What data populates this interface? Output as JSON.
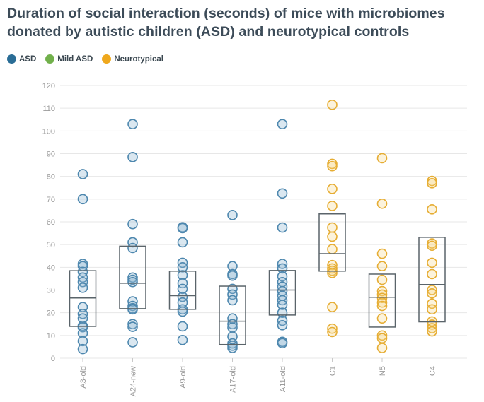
{
  "title": "Duration of social interaction (seconds) of mice with microbiomes\ndonated by autistic children (ASD) and neurotypical controls",
  "legend": [
    {
      "label": "ASD",
      "color": "#2a6d96"
    },
    {
      "label": "Mild ASD",
      "color": "#71b04b"
    },
    {
      "label": "Neurotypical",
      "color": "#efa81d"
    }
  ],
  "chart_data": {
    "type": "scatter",
    "overlay": "box",
    "title": "Duration of social interaction (seconds) of mice with microbiomes donated by autistic children (ASD) and neurotypical controls",
    "xlabel": "",
    "ylabel": "",
    "ylim": [
      0,
      120
    ],
    "ytick_step": 10,
    "grid": true,
    "legend_position": "top-left",
    "legend_entries": [
      "ASD",
      "Mild ASD",
      "Neurotypical"
    ],
    "categories": [
      "A3-old",
      "A24-new",
      "A9-old",
      "A17-old",
      "A11-old",
      "C1",
      "N5",
      "C4"
    ],
    "series_styles": {
      "ASD": {
        "stroke": "#4d87ae",
        "fill": "rgba(141,179,207,0.32)"
      },
      "Mild ASD": {
        "stroke": "#71b04b",
        "fill": "rgba(160,200,120,0.32)"
      },
      "Neurotypical": {
        "stroke": "#e6ad33",
        "fill": "rgba(244,211,130,0.28)"
      }
    },
    "box_color": "#5a646a",
    "grid_color": "#e7e7e7",
    "tick_color": "#c9c9c9",
    "axis_label_color": "#9b9b9b",
    "groups": [
      {
        "name": "A3-old",
        "series": "ASD",
        "points": [
          81,
          70,
          41.5,
          40.5,
          38,
          35.5,
          33.5,
          31,
          22.5,
          19.5,
          17.5,
          14.2,
          13.6,
          11,
          7.5,
          4
        ],
        "box": {
          "q1": 14,
          "median": 26.5,
          "q3": 38.5
        }
      },
      {
        "name": "A24-new",
        "series": "ASD",
        "points": [
          103,
          88.5,
          59,
          51,
          48.5,
          35.5,
          34.5,
          33.5,
          25,
          23,
          22,
          21.5,
          15,
          13.8,
          7
        ],
        "box": {
          "q1": 21.8,
          "median": 33,
          "q3": 49.3
        }
      },
      {
        "name": "A9-old",
        "series": "ASD",
        "points": [
          57.6,
          57.2,
          51,
          42,
          40,
          36.5,
          33,
          30.5,
          27,
          24.5,
          21.5,
          20.5,
          14,
          8
        ],
        "box": {
          "q1": 21.5,
          "median": 27.5,
          "q3": 38.3
        }
      },
      {
        "name": "A17-old",
        "series": "ASD",
        "points": [
          63,
          40.5,
          37,
          36.3,
          30.5,
          28,
          25.5,
          17.5,
          15,
          13.5,
          9.5,
          6.5,
          5.5,
          4.5
        ],
        "box": {
          "q1": 6,
          "median": 16.3,
          "q3": 31.7
        }
      },
      {
        "name": "A11-old",
        "series": "ASD",
        "points": [
          103,
          72.5,
          57.5,
          41.5,
          39.5,
          36,
          33.5,
          31.5,
          29.5,
          27.5,
          25.5,
          23.5,
          20,
          16.5,
          14.5,
          7.2,
          6.6
        ],
        "box": {
          "q1": 19,
          "median": 30,
          "q3": 38.6
        }
      },
      {
        "name": "C1",
        "series": "Neurotypical",
        "points": [
          111.5,
          85.5,
          84.5,
          74.5,
          67,
          57.5,
          53.5,
          48,
          41,
          39.5,
          38.5,
          37.5,
          22.5,
          13,
          11.5
        ],
        "box": {
          "q1": 38.3,
          "median": 46,
          "q3": 63.5
        }
      },
      {
        "name": "N5",
        "series": "Neurotypical",
        "points": [
          88,
          68,
          46,
          40.5,
          34.5,
          29.5,
          28,
          26.5,
          24.5,
          23,
          17.5,
          10,
          8.8,
          4.5
        ],
        "box": {
          "q1": 13.7,
          "median": 26.8,
          "q3": 37
        }
      },
      {
        "name": "C4",
        "series": "Neurotypical",
        "points": [
          78,
          77,
          65.5,
          50.5,
          49.5,
          42,
          37,
          30,
          28.5,
          24,
          21.5,
          16.2,
          14.8,
          13.2,
          11.8
        ],
        "box": {
          "q1": 16,
          "median": 32.4,
          "q3": 53.2
        }
      }
    ]
  }
}
